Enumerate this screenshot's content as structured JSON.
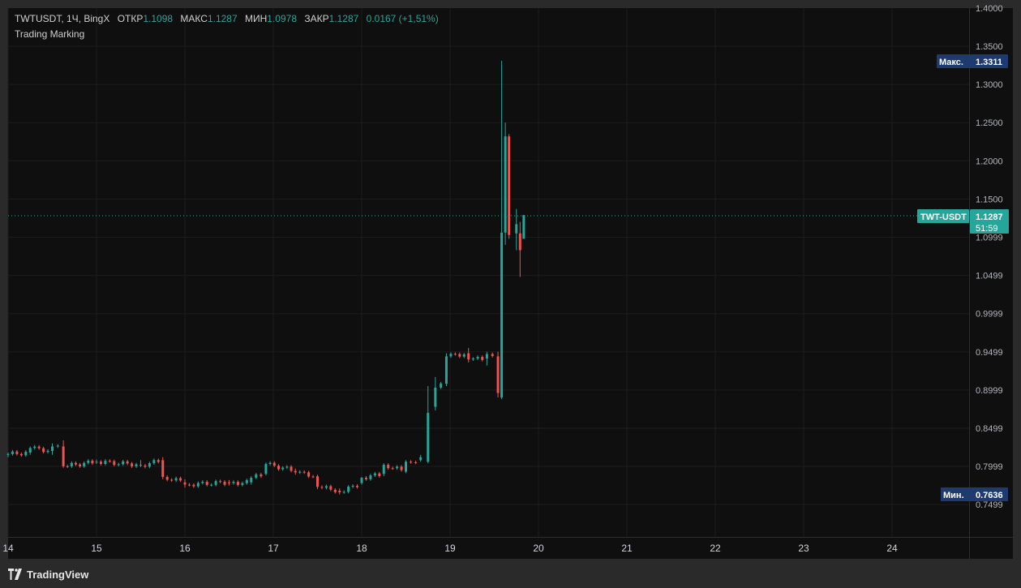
{
  "legend": {
    "symbol": "TWTUSDT, 1Ч, BingX",
    "open_label": "ОТКР",
    "open_value": "1.1098",
    "high_label": "МАКС",
    "high_value": "1.1287",
    "low_label": "МИН",
    "low_value": "1.0978",
    "close_label": "ЗАКР",
    "close_value": "1.1287",
    "change": "0.0167 (+1,51%)",
    "indicator": "Trading Marking"
  },
  "price_axis": {
    "ticks": [
      "1.4000",
      "1.3500",
      "1.3000",
      "1.2500",
      "1.2000",
      "1.1500",
      "1.0999",
      "1.0499",
      "0.9999",
      "0.9499",
      "0.8999",
      "0.8499",
      "0.7999",
      "0.7499"
    ],
    "max_label": "Макс.",
    "max_value": "1.3311",
    "min_label": "Мин.",
    "min_value": "0.7636",
    "current_label": "TWT-USDT",
    "current_value": "1.1287",
    "countdown": "51:59"
  },
  "time_axis": {
    "ticks": [
      "14",
      "15",
      "16",
      "17",
      "18",
      "19",
      "20",
      "21",
      "22",
      "23",
      "24"
    ]
  },
  "footer": {
    "brand": "TradingView"
  },
  "colors": {
    "up": "#26a69a",
    "down": "#ef5350",
    "background": "#0f0f0f",
    "grid": "#1c1c1c",
    "max_badge": "#1e3a6e"
  },
  "chart_data": {
    "type": "candlestick",
    "title": "TWTUSDT, 1Ч, BingX",
    "xlabel": "",
    "ylabel": "",
    "x_range": [
      "14",
      "24"
    ],
    "ylim": [
      0.72,
      1.4
    ],
    "grid": true,
    "candles_approx_sampled": [
      {
        "x": "14 00:00",
        "o": 0.815,
        "h": 0.818,
        "l": 0.812,
        "c": 0.816
      },
      {
        "x": "14 06:00",
        "o": 0.818,
        "h": 0.826,
        "l": 0.815,
        "c": 0.824
      },
      {
        "x": "14 12:00",
        "o": 0.82,
        "h": 0.83,
        "l": 0.815,
        "c": 0.826
      },
      {
        "x": "14 15:00",
        "o": 0.826,
        "h": 0.834,
        "l": 0.798,
        "c": 0.8
      },
      {
        "x": "15 00:00",
        "o": 0.806,
        "h": 0.809,
        "l": 0.803,
        "c": 0.806
      },
      {
        "x": "15 12:00",
        "o": 0.802,
        "h": 0.808,
        "l": 0.799,
        "c": 0.801
      },
      {
        "x": "15 18:00",
        "o": 0.808,
        "h": 0.812,
        "l": 0.783,
        "c": 0.786
      },
      {
        "x": "16 00:00",
        "o": 0.779,
        "h": 0.783,
        "l": 0.772,
        "c": 0.776
      },
      {
        "x": "16 12:00",
        "o": 0.779,
        "h": 0.782,
        "l": 0.775,
        "c": 0.778
      },
      {
        "x": "16 18:00",
        "o": 0.779,
        "h": 0.787,
        "l": 0.776,
        "c": 0.785
      },
      {
        "x": "16 22:00",
        "o": 0.79,
        "h": 0.805,
        "l": 0.788,
        "c": 0.803
      },
      {
        "x": "17 06:00",
        "o": 0.794,
        "h": 0.797,
        "l": 0.789,
        "c": 0.792
      },
      {
        "x": "17 12:00",
        "o": 0.787,
        "h": 0.789,
        "l": 0.77,
        "c": 0.773
      },
      {
        "x": "17 18:00",
        "o": 0.768,
        "h": 0.771,
        "l": 0.763,
        "c": 0.766
      },
      {
        "x": "18 00:00",
        "o": 0.778,
        "h": 0.786,
        "l": 0.776,
        "c": 0.785
      },
      {
        "x": "18 06:00",
        "o": 0.79,
        "h": 0.804,
        "l": 0.787,
        "c": 0.802
      },
      {
        "x": "18 12:00",
        "o": 0.793,
        "h": 0.808,
        "l": 0.791,
        "c": 0.806
      },
      {
        "x": "18 16:00",
        "o": 0.808,
        "h": 0.815,
        "l": 0.806,
        "c": 0.812
      },
      {
        "x": "18 18:00",
        "o": 0.806,
        "h": 0.905,
        "l": 0.804,
        "c": 0.87
      },
      {
        "x": "18 20:00",
        "o": 0.878,
        "h": 0.917,
        "l": 0.873,
        "c": 0.903
      },
      {
        "x": "18 23:00",
        "o": 0.908,
        "h": 0.948,
        "l": 0.905,
        "c": 0.944
      },
      {
        "x": "19 05:00",
        "o": 0.948,
        "h": 0.955,
        "l": 0.936,
        "c": 0.94
      },
      {
        "x": "19 10:00",
        "o": 0.941,
        "h": 0.95,
        "l": 0.932,
        "c": 0.947
      },
      {
        "x": "19 13:00",
        "o": 0.944,
        "h": 0.95,
        "l": 0.89,
        "c": 0.896
      },
      {
        "x": "19 14:00",
        "o": 0.89,
        "h": 1.331,
        "l": 0.888,
        "c": 1.106
      },
      {
        "x": "19 15:00",
        "o": 1.106,
        "h": 1.25,
        "l": 1.09,
        "c": 1.232
      },
      {
        "x": "19 16:00",
        "o": 1.232,
        "h": 1.235,
        "l": 1.098,
        "c": 1.103
      },
      {
        "x": "19 18:00",
        "o": 1.105,
        "h": 1.137,
        "l": 1.083,
        "c": 1.117
      },
      {
        "x": "19 19:00",
        "o": 1.105,
        "h": 1.12,
        "l": 1.048,
        "c": 1.083
      },
      {
        "x": "19 20:00",
        "o": 1.098,
        "h": 1.129,
        "l": 1.098,
        "c": 1.129
      }
    ]
  }
}
